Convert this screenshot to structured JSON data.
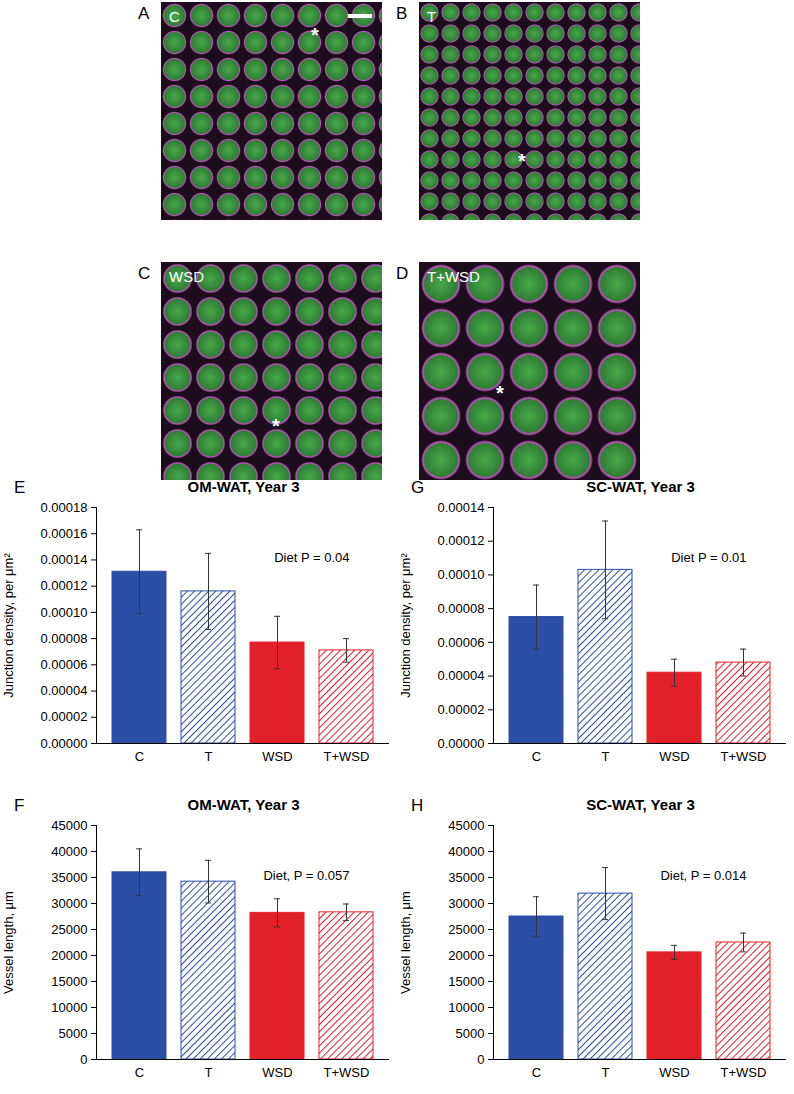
{
  "images": [
    {
      "letter": "A",
      "label": "C",
      "asterisk": "*"
    },
    {
      "letter": "B",
      "label": "T",
      "asterisk": "*"
    },
    {
      "letter": "C",
      "label": "WSD",
      "asterisk": "*"
    },
    {
      "letter": "D",
      "label": "T+WSD",
      "asterisk": "*"
    }
  ],
  "chart_data": [
    {
      "type": "bar",
      "letter": "E",
      "title": "OM-WAT, Year 3",
      "ylabel": "Junction density, per μm²",
      "annotation": "Diet P = 0.04",
      "categories": [
        "C",
        "T",
        "WSD",
        "T+WSD"
      ],
      "values": [
        0.000131,
        0.000116,
        7.7e-05,
        7.1e-05
      ],
      "errors": [
        3.2e-05,
        2.9e-05,
        2e-05,
        9e-06
      ],
      "colors": [
        "#2b4fa6",
        "#2b4fa6",
        "#e2202a",
        "#e2202a"
      ],
      "ylim": [
        0,
        0.00018
      ],
      "yticks": [
        {
          "value": 0,
          "label": "0.00000"
        },
        {
          "value": 2e-05,
          "label": "0.00002"
        },
        {
          "value": 4e-05,
          "label": "0.00004"
        },
        {
          "value": 6e-05,
          "label": "0.00006"
        },
        {
          "value": 8e-05,
          "label": "0.00008"
        },
        {
          "value": 0.0001,
          "label": "0.00010"
        },
        {
          "value": 0.00012,
          "label": "0.00012"
        },
        {
          "value": 0.00014,
          "label": "0.00014"
        },
        {
          "value": 0.00016,
          "label": "0.00016"
        },
        {
          "value": 0.00018,
          "label": "0.00018"
        }
      ],
      "grid": false
    },
    {
      "type": "bar",
      "letter": "F",
      "title": "OM-WAT, Year 3",
      "ylabel": "Vessel length, μm",
      "annotation": "Diet, P = 0.057",
      "categories": [
        "C",
        "T",
        "WSD",
        "T+WSD"
      ],
      "values": [
        36000,
        34200,
        28200,
        28300
      ],
      "errors": [
        4500,
        4100,
        2700,
        1600
      ],
      "colors": [
        "#2b4fa6",
        "#2b4fa6",
        "#e2202a",
        "#e2202a"
      ],
      "ylim": [
        0,
        45000
      ],
      "yticks": [
        0,
        5000,
        10000,
        15000,
        20000,
        25000,
        30000,
        35000,
        40000,
        45000
      ],
      "grid": false
    },
    {
      "type": "bar",
      "letter": "G",
      "title": "SC-WAT, Year 3",
      "ylabel": "Junction density, per μm²",
      "annotation": "Diet P = 0.01",
      "categories": [
        "C",
        "T",
        "WSD",
        "T+WSD"
      ],
      "values": [
        7.5e-05,
        0.000103,
        4.2e-05,
        4.8e-05
      ],
      "errors": [
        1.9e-05,
        2.9e-05,
        8e-06,
        8e-06
      ],
      "colors": [
        "#2b4fa6",
        "#2b4fa6",
        "#e2202a",
        "#e2202a"
      ],
      "ylim": [
        0,
        0.00014
      ],
      "yticks": [
        {
          "value": 0,
          "label": "0.00000"
        },
        {
          "value": 2e-05,
          "label": "0.00002"
        },
        {
          "value": 4e-05,
          "label": "0.00004"
        },
        {
          "value": 6e-05,
          "label": "0.00006"
        },
        {
          "value": 8e-05,
          "label": "0.00008"
        },
        {
          "value": 0.0001,
          "label": "0.00010"
        },
        {
          "value": 0.00012,
          "label": "0.00012"
        },
        {
          "value": 0.00014,
          "label": "0.00014"
        }
      ],
      "grid": false
    },
    {
      "type": "bar",
      "letter": "H",
      "title": "SC-WAT, Year 3",
      "ylabel": "Vessel length, μm",
      "annotation": "Diet, P = 0.014",
      "categories": [
        "C",
        "T",
        "WSD",
        "T+WSD"
      ],
      "values": [
        27500,
        31900,
        20600,
        22500
      ],
      "errors": [
        3800,
        5000,
        1350,
        1800
      ],
      "colors": [
        "#2b4fa6",
        "#2b4fa6",
        "#e2202a",
        "#e2202a"
      ],
      "ylim": [
        0,
        45000
      ],
      "yticks": [
        0,
        5000,
        10000,
        15000,
        20000,
        25000,
        30000,
        35000,
        40000,
        45000
      ],
      "grid": false
    }
  ]
}
